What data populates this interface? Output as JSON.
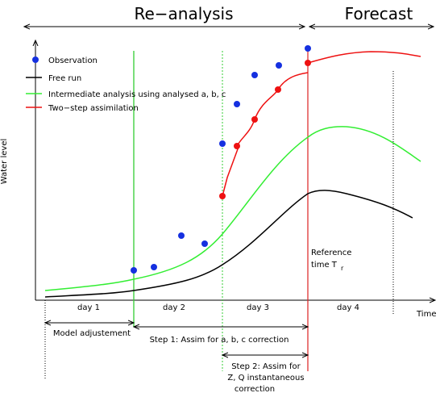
{
  "header": {
    "reanalysis": "Re−analysis",
    "forecast": "Forecast"
  },
  "legend": [
    "Observation",
    "Free run",
    "Intermediate analysis using analysed a, b, c",
    "Two−step assimilation"
  ],
  "axes": {
    "y_label": "Water level",
    "x_label": "Time"
  },
  "days": [
    "day 1",
    "day 2",
    "day 3",
    "day 4"
  ],
  "reference": {
    "lines": [
      "Reference",
      "time  T"
    ],
    "subscript": "r"
  },
  "phases": {
    "model_adjustment": "Model adjustement",
    "step1": "Step 1: Assim for a, b, c correction",
    "step2": [
      "Step 2: Assim for",
      "Z, Q instantaneous",
      "correction"
    ]
  }
}
